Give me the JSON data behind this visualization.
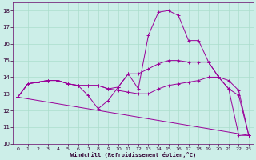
{
  "xlabel": "Windchill (Refroidissement éolien,°C)",
  "xlim": [
    -0.5,
    23.5
  ],
  "ylim": [
    10,
    18.5
  ],
  "yticks": [
    10,
    11,
    12,
    13,
    14,
    15,
    16,
    17,
    18
  ],
  "xticks": [
    0,
    1,
    2,
    3,
    4,
    5,
    6,
    7,
    8,
    9,
    10,
    11,
    12,
    13,
    14,
    15,
    16,
    17,
    18,
    19,
    20,
    21,
    22,
    23
  ],
  "bg_color": "#cceee8",
  "grid_color": "#aaddcc",
  "line_color": "#990099",
  "lines": [
    {
      "x": [
        0,
        1,
        2,
        3,
        4,
        5,
        6,
        7,
        8,
        9,
        10,
        11,
        12,
        13,
        14,
        15,
        16,
        17,
        18,
        19,
        20,
        21,
        22,
        23
      ],
      "y": [
        12.8,
        13.6,
        13.7,
        13.8,
        13.8,
        13.6,
        13.5,
        12.9,
        12.1,
        12.6,
        13.4,
        14.2,
        13.3,
        16.5,
        17.9,
        18.0,
        17.7,
        16.2,
        16.2,
        14.9,
        14.0,
        13.3,
        12.9,
        10.5
      ]
    },
    {
      "x": [
        0,
        1,
        2,
        3,
        4,
        5,
        6,
        7,
        8,
        9,
        10,
        11,
        12,
        13,
        14,
        15,
        16,
        17,
        18,
        19,
        20,
        21,
        22,
        23
      ],
      "y": [
        12.8,
        13.6,
        13.7,
        13.8,
        13.8,
        13.6,
        13.5,
        13.5,
        13.5,
        13.3,
        13.2,
        13.1,
        13.0,
        13.0,
        13.3,
        13.5,
        13.6,
        13.7,
        13.8,
        14.0,
        14.0,
        13.8,
        13.2,
        10.5
      ]
    },
    {
      "x": [
        0,
        1,
        2,
        3,
        4,
        5,
        6,
        7,
        8,
        9,
        10,
        11,
        12,
        13,
        14,
        15,
        16,
        17,
        18,
        19,
        20,
        21,
        22,
        23
      ],
      "y": [
        12.8,
        13.6,
        13.7,
        13.8,
        13.8,
        13.6,
        13.5,
        13.5,
        13.5,
        13.3,
        13.4,
        14.2,
        14.2,
        14.5,
        14.8,
        15.0,
        15.0,
        14.9,
        14.9,
        14.9,
        14.0,
        13.3,
        10.5,
        10.5
      ]
    },
    {
      "x": [
        0,
        23
      ],
      "y": [
        12.8,
        10.5
      ]
    }
  ]
}
